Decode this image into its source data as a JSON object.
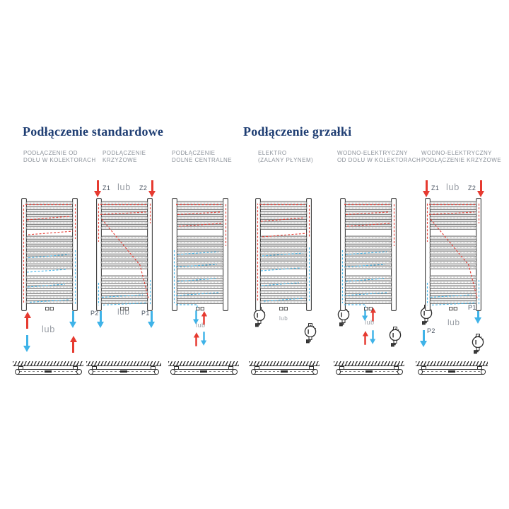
{
  "sections": [
    {
      "title": "Podłączenie standardowe"
    },
    {
      "title": "Podłączenie grzałki"
    }
  ],
  "labels": {
    "or": "lub",
    "z1": "Z1",
    "z2": "Z2",
    "p1": "P1",
    "p2": "P2"
  },
  "colors": {
    "supply_red": "#e63a30",
    "return_blue": "#3fb3e8",
    "title_navy": "#1f3e73",
    "caption_gray": "#8d939b"
  },
  "diagrams": [
    {
      "id": "standard-bottom-collectors",
      "label_line1": "PODŁĄCZENIE OD",
      "label_line2": "DOŁU W KOLEKTORACH",
      "variant": "bottom-collectors"
    },
    {
      "id": "standard-cross",
      "label_line1": "PODŁĄCZENIE",
      "label_line2": "KRZYŻOWE",
      "variant": "cross"
    },
    {
      "id": "standard-bottom-central",
      "label_line1": "PODŁĄCZENIE",
      "label_line2": "DOLNE CENTRALNE",
      "variant": "central"
    },
    {
      "id": "electric",
      "label_line1": "ELEKTRO",
      "label_line2": "(ZALANY PŁYNEM)",
      "variant": "electric"
    },
    {
      "id": "water-electric-bottom-collectors",
      "label_line1": "WODNO-ELEKTRYCZNY",
      "label_line2": "OD DOŁU W KOLEKTORACH",
      "variant": "water-electric-central"
    },
    {
      "id": "water-electric-cross",
      "label_line1": "WODNO-ELEKTRYCZNY",
      "label_line2": "PODŁĄCZENIE KRZYŻOWE",
      "variant": "water-electric-cross"
    }
  ]
}
